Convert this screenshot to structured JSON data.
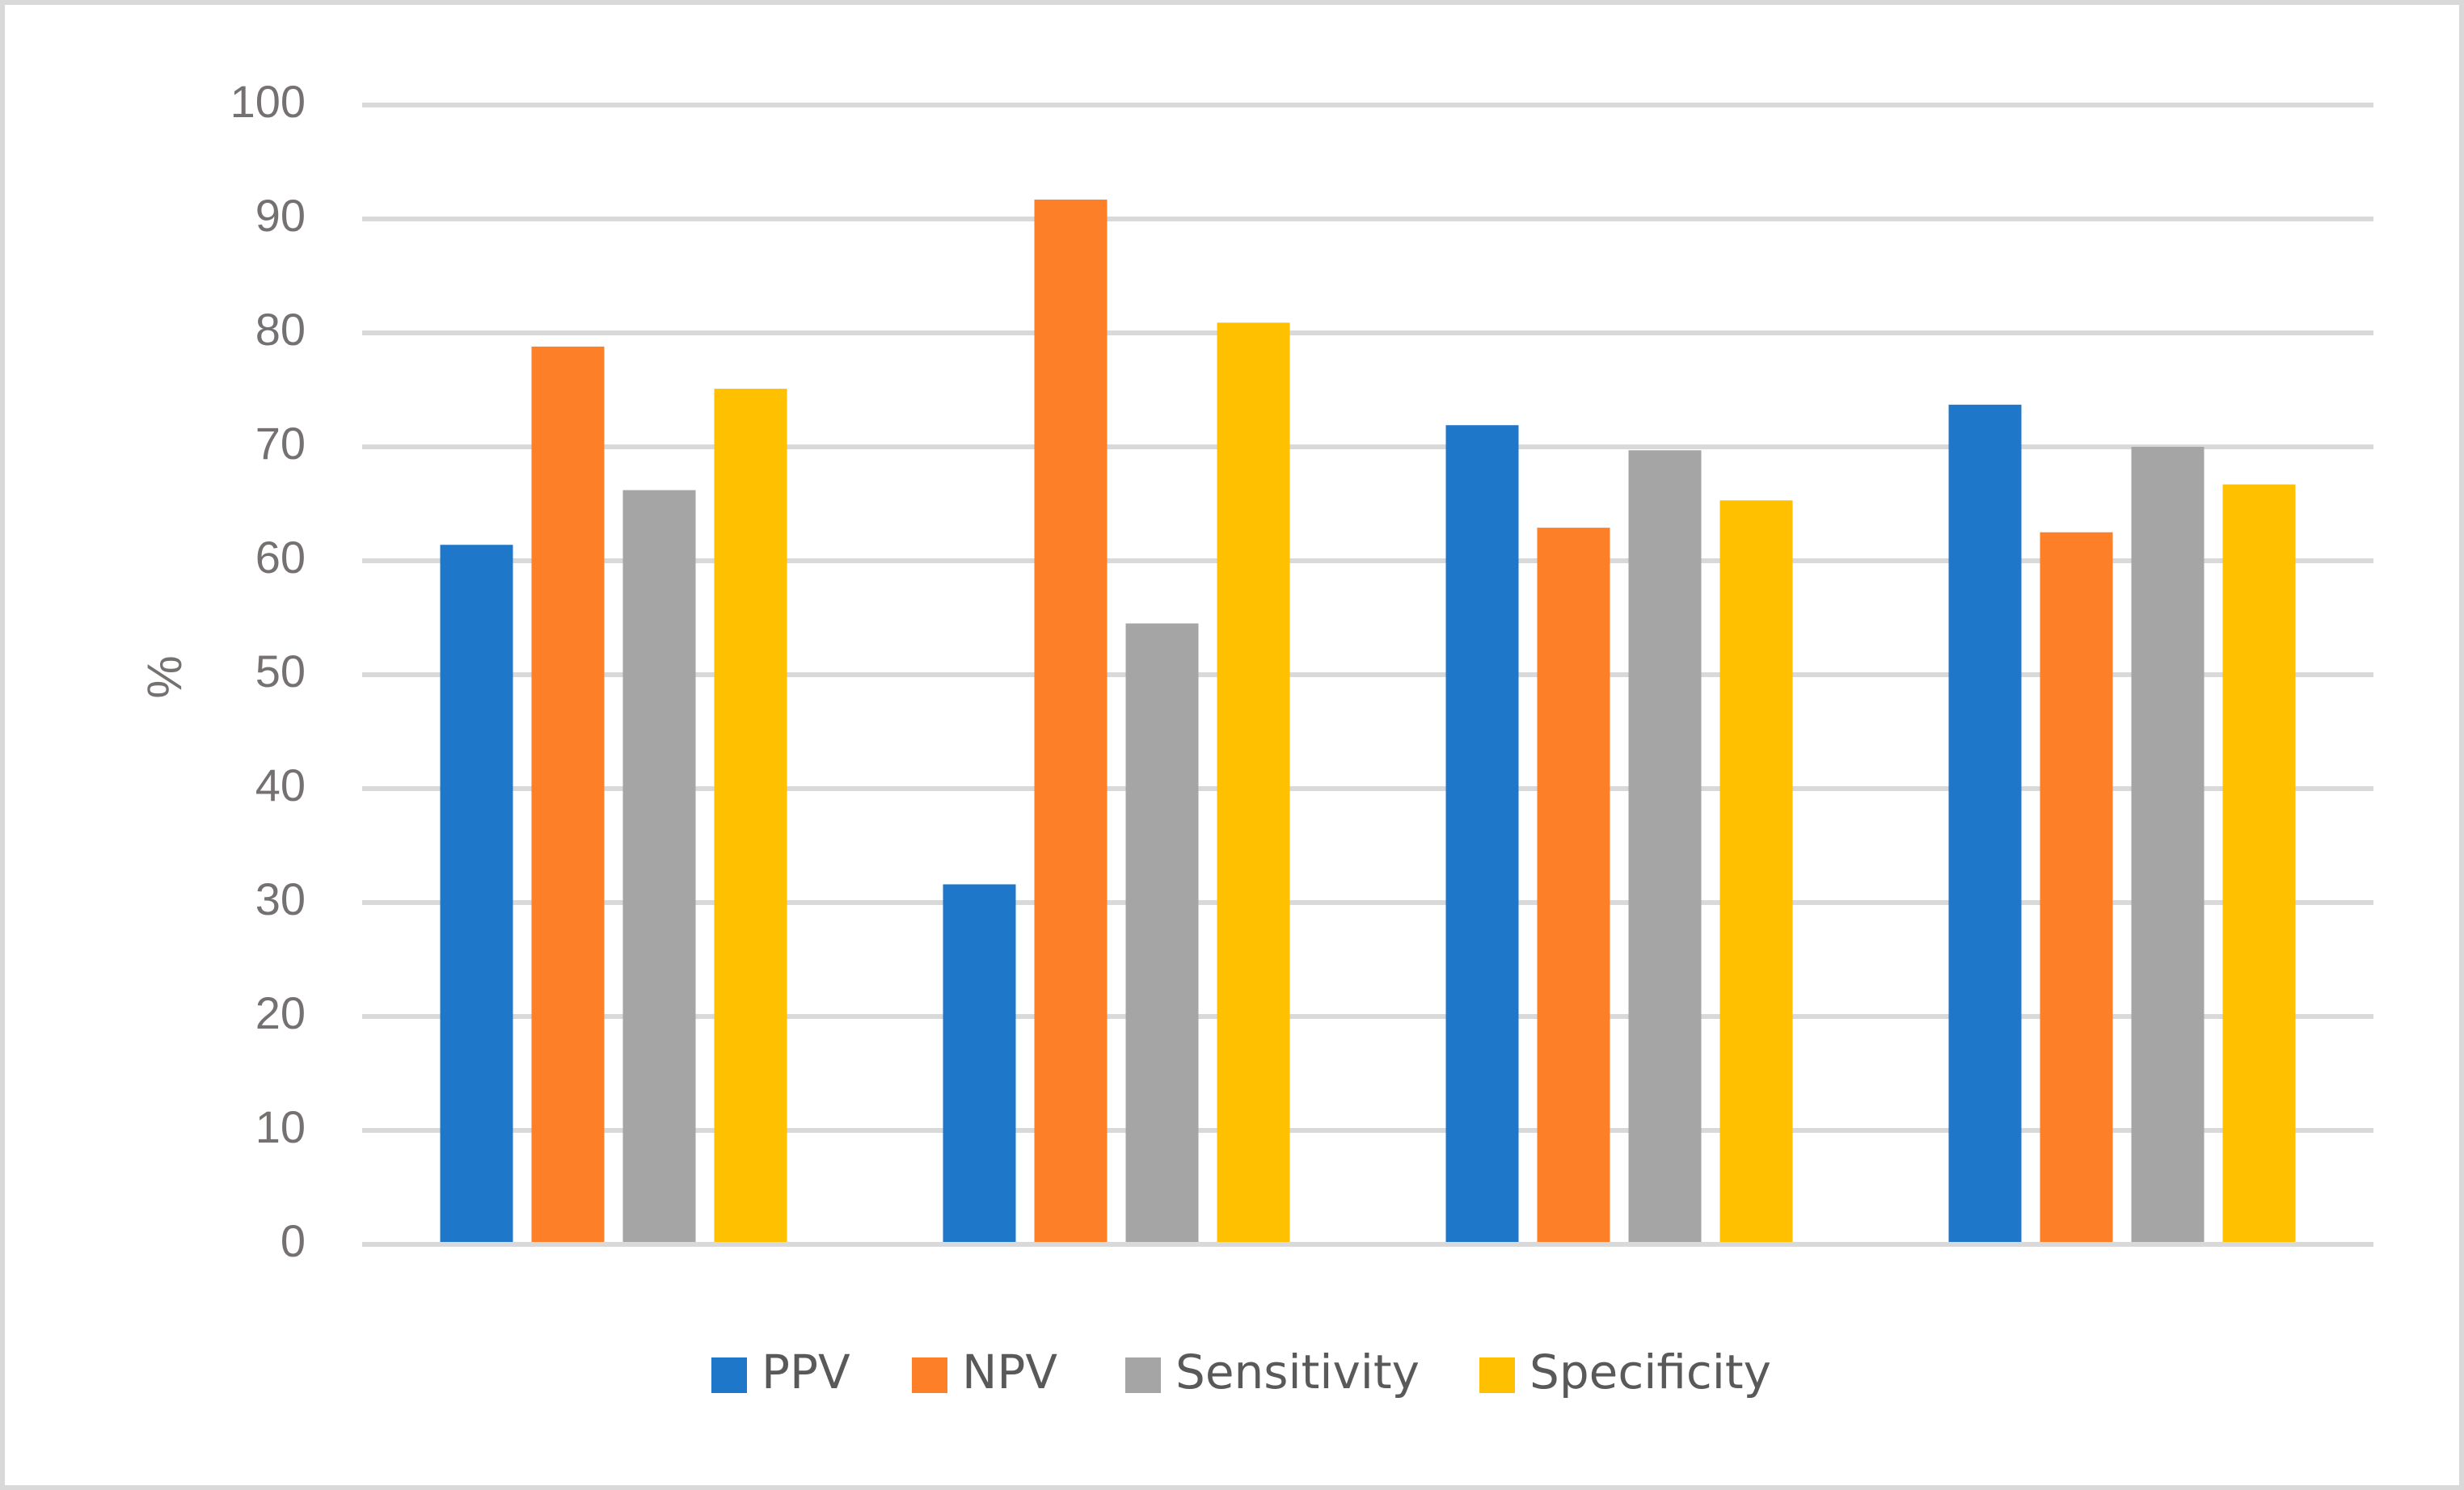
{
  "chart_data": {
    "type": "bar",
    "title": "",
    "xlabel": "",
    "ylabel": "%",
    "ylim": [
      0,
      100
    ],
    "yticks": [
      0,
      10,
      20,
      30,
      40,
      50,
      60,
      70,
      80,
      90,
      100
    ],
    "grid": true,
    "legend_position": "bottom",
    "categories": [
      "",
      "",
      "",
      ""
    ],
    "series": [
      {
        "name": "PPV",
        "color": "#1f77c9",
        "values": [
          61.4,
          31.6,
          71.9,
          73.7
        ]
      },
      {
        "name": "NPV",
        "color": "#fd7f28",
        "values": [
          78.8,
          91.7,
          62.9,
          62.5
        ]
      },
      {
        "name": "Sensitivity",
        "color": "#a5a5a5",
        "values": [
          66.2,
          54.5,
          69.7,
          70.0
        ]
      },
      {
        "name": "Specificity",
        "color": "#ffc000",
        "values": [
          75.1,
          80.9,
          65.3,
          66.7
        ]
      }
    ]
  },
  "frame_color": "#d9d9d9"
}
